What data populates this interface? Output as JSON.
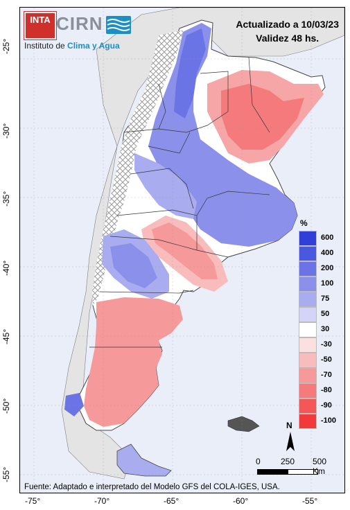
{
  "header": {
    "updated": "Actualizado a 10/03/23",
    "validity": "Validez 48 hs."
  },
  "logo": {
    "inta": "INTA",
    "cirn": "CIRN",
    "institute_prefix": "Instituto de ",
    "institute_accent": "Clima y Agua"
  },
  "legend": {
    "unit": "%",
    "items": [
      {
        "label": "600",
        "color": "#2f3fd8"
      },
      {
        "label": "400",
        "color": "#4a57df"
      },
      {
        "label": "200",
        "color": "#6b74e4"
      },
      {
        "label": "100",
        "color": "#8b91ea"
      },
      {
        "label": "75",
        "color": "#a9acef"
      },
      {
        "label": "50",
        "color": "#d3d4f7"
      },
      {
        "label": "30",
        "color": "#ffffff"
      },
      {
        "label": "-30",
        "color": "#fbe0e0"
      },
      {
        "label": "-50",
        "color": "#f8bcbc"
      },
      {
        "label": "-70",
        "color": "#f6999a"
      },
      {
        "label": "-80",
        "color": "#f47a7b"
      },
      {
        "label": "-90",
        "color": "#f45758"
      },
      {
        "label": "-100",
        "color": "#f23a3b"
      }
    ]
  },
  "scale": {
    "labels": [
      "0",
      "250",
      "500 Km"
    ],
    "north": "N"
  },
  "axes": {
    "lat_labels": [
      "-25°",
      "-30°",
      "-35°",
      "-40°",
      "-45°",
      "-50°",
      "-55°"
    ],
    "lon_labels": [
      "-75°",
      "-70°",
      "-65°",
      "-60°",
      "-55°"
    ]
  },
  "source": "Fuente: Adaptado e interpretado del Modelo GFS del COLA-IGES, USA."
}
